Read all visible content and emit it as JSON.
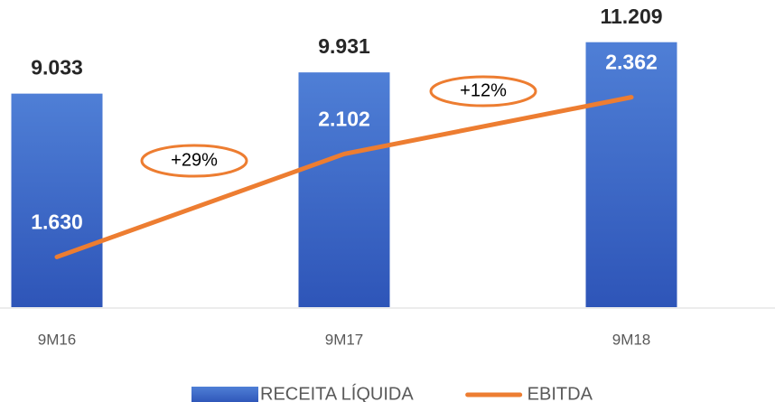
{
  "chart_data": {
    "type": "bar",
    "categories": [
      "9M16",
      "9M17",
      "9M18"
    ],
    "series": [
      {
        "name": "RECEITA LÍQUIDA",
        "type": "bar",
        "color": "#4472c4",
        "values": [
          9033,
          9931,
          11209
        ],
        "value_labels": [
          "9.033",
          "9.931",
          "11.209"
        ]
      },
      {
        "name": "EBITDA",
        "type": "line",
        "axis": "y2",
        "color": "#ed7d31",
        "values": [
          1630,
          2102,
          2362
        ],
        "value_labels": [
          "1.630",
          "2.102",
          "2.362"
        ]
      }
    ],
    "ylim": [
      0,
      12000
    ],
    "y2lim": [
      1400,
      2700
    ],
    "annotations": [
      "+29%",
      "+12%"
    ],
    "legend": "bottom"
  }
}
